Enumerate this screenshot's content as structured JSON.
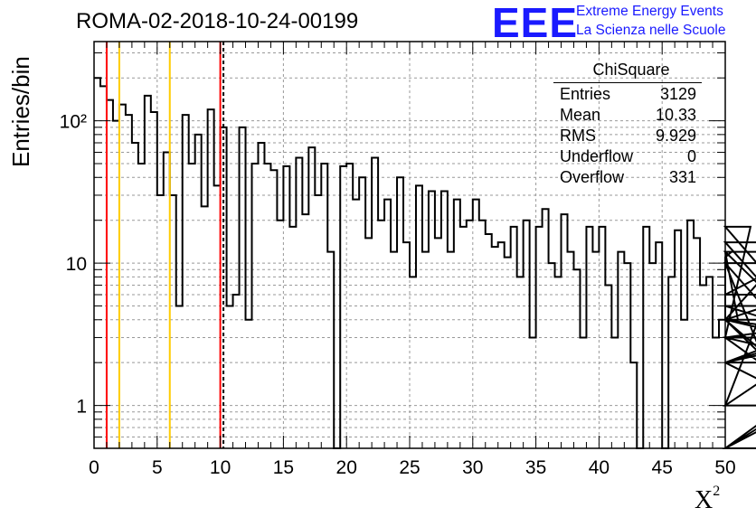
{
  "header": {
    "title": "ROMA-02-2018-10-24-00199",
    "logo_text": "EEE",
    "logo_line1": "Extreme Energy Events",
    "logo_line2": "La Scienza nelle Scuole"
  },
  "stats_box": {
    "name": "ChiSquare",
    "rows": [
      {
        "label": "Entries",
        "value": "3129"
      },
      {
        "label": "Mean",
        "value": "10.33"
      },
      {
        "label": "RMS",
        "value": "9.929"
      },
      {
        "label": "Underflow",
        "value": "0"
      },
      {
        "label": "Overflow",
        "value": "331"
      }
    ]
  },
  "chart_data": {
    "type": "histogram",
    "xlabel": "χ²",
    "ylabel": "Entries/bin",
    "xlim": [
      0,
      50
    ],
    "ylim": [
      0.5,
      360
    ],
    "y_scale": "log",
    "grid": true,
    "x_ticks": [
      "0",
      "5",
      "10",
      "15",
      "20",
      "25",
      "30",
      "35",
      "40",
      "45",
      "50"
    ],
    "y_tick_labels": [
      "1",
      "10",
      "10²"
    ],
    "bin_width": 0.5,
    "values": [
      200,
      175,
      140,
      100,
      130,
      110,
      70,
      50,
      150,
      115,
      30,
      60,
      30,
      5,
      110,
      50,
      80,
      25,
      120,
      35,
      90,
      5,
      6,
      90,
      4,
      50,
      70,
      50,
      45,
      20,
      48,
      18,
      55,
      22,
      65,
      30,
      50,
      12,
      0,
      48,
      50,
      28,
      40,
      15,
      55,
      20,
      28,
      12,
      40,
      14,
      8,
      35,
      12,
      32,
      15,
      32,
      12,
      28,
      18,
      20,
      28,
      20,
      16,
      13,
      14,
      11,
      18,
      8,
      20,
      3,
      18,
      24,
      10,
      8,
      22,
      12,
      9,
      3,
      18,
      12,
      18,
      7,
      3,
      12,
      10,
      2,
      0,
      18,
      10,
      14,
      0,
      8,
      17,
      4,
      20,
      15,
      7,
      8,
      3,
      4,
      11,
      12,
      4,
      3,
      18,
      10,
      5,
      4,
      10,
      1,
      14,
      4,
      6,
      12,
      3,
      1,
      3,
      2,
      4,
      3,
      4,
      0.5,
      2,
      4,
      0.5,
      0.5,
      2,
      0.5,
      4,
      2,
      4
    ],
    "vertical_lines": [
      {
        "x": 1,
        "color": "#ff0000",
        "style": "solid"
      },
      {
        "x": 2,
        "color": "#ffcc00",
        "style": "solid"
      },
      {
        "x": 6,
        "color": "#ffcc00",
        "style": "solid"
      },
      {
        "x": 10,
        "color": "#ff0000",
        "style": "solid"
      },
      {
        "x": 10.25,
        "color": "#000000",
        "style": "dashed"
      }
    ],
    "colors": {
      "histogram_line": "#000000",
      "grid": "#999999",
      "logo": "#1a1aff"
    }
  }
}
